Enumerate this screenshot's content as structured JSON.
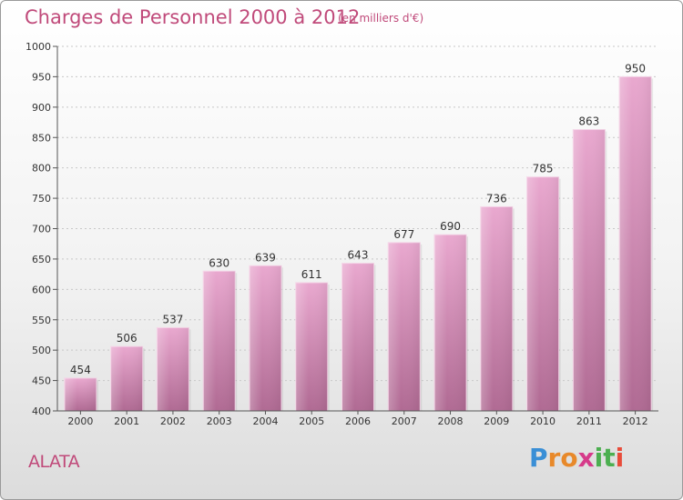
{
  "title": "Charges de Personnel 2000 à 2012",
  "subtitle": "(en milliers d'€)",
  "location": "ALATA",
  "brand": {
    "letters": [
      "P",
      "r",
      "o",
      "x",
      "i",
      "t",
      "i"
    ],
    "colors": [
      "#3a8fd6",
      "#e8892a",
      "#e8892a",
      "#d63a8a",
      "#4caf50",
      "#4caf50",
      "#e84c3a"
    ]
  },
  "chart_data": {
    "type": "bar",
    "categories": [
      "2000",
      "2001",
      "2002",
      "2003",
      "2004",
      "2005",
      "2006",
      "2007",
      "2008",
      "2009",
      "2010",
      "2011",
      "2012"
    ],
    "values": [
      454,
      506,
      537,
      630,
      639,
      611,
      643,
      677,
      690,
      736,
      785,
      863,
      950
    ],
    "title": "Charges de Personnel 2000 à 2012",
    "subtitle": "(en milliers d'€)",
    "xlabel": "",
    "ylabel": "",
    "ylim": [
      400,
      1000
    ],
    "yticks": [
      400,
      450,
      500,
      550,
      600,
      650,
      700,
      750,
      800,
      850,
      900,
      950,
      1000
    ],
    "grid": true,
    "bar_color_top": "#e9a8cf",
    "bar_color_bottom": "#b06a93"
  }
}
